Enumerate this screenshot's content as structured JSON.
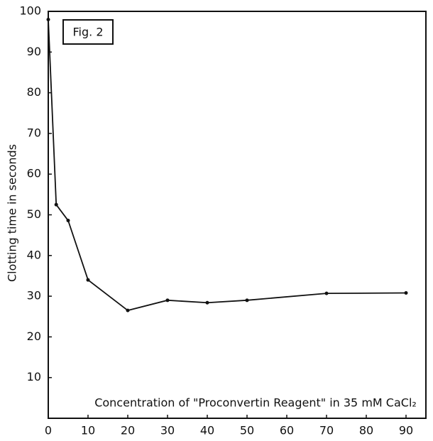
{
  "chart_data": {
    "type": "line",
    "annotation": "Fig. 2",
    "x_label": "Concentration of \"Proconvertin Reagent\" in 35 mM CaCl₂",
    "y_label": "Clotting time in seconds",
    "x": [
      0,
      2,
      5,
      10,
      20,
      30,
      40,
      50,
      70,
      90
    ],
    "series": [
      {
        "color": "#111111",
        "values": [
          98,
          52.5,
          48.6,
          34,
          26.5,
          29,
          28.4,
          29,
          30.7,
          30.8
        ]
      }
    ],
    "xlim": [
      0,
      95
    ],
    "xticks": [
      0,
      10,
      20,
      30,
      40,
      50,
      60,
      70,
      80,
      90
    ],
    "ylim": [
      0,
      100
    ],
    "yticks": [
      10,
      20,
      30,
      40,
      50,
      60,
      70,
      80,
      90,
      100
    ]
  }
}
